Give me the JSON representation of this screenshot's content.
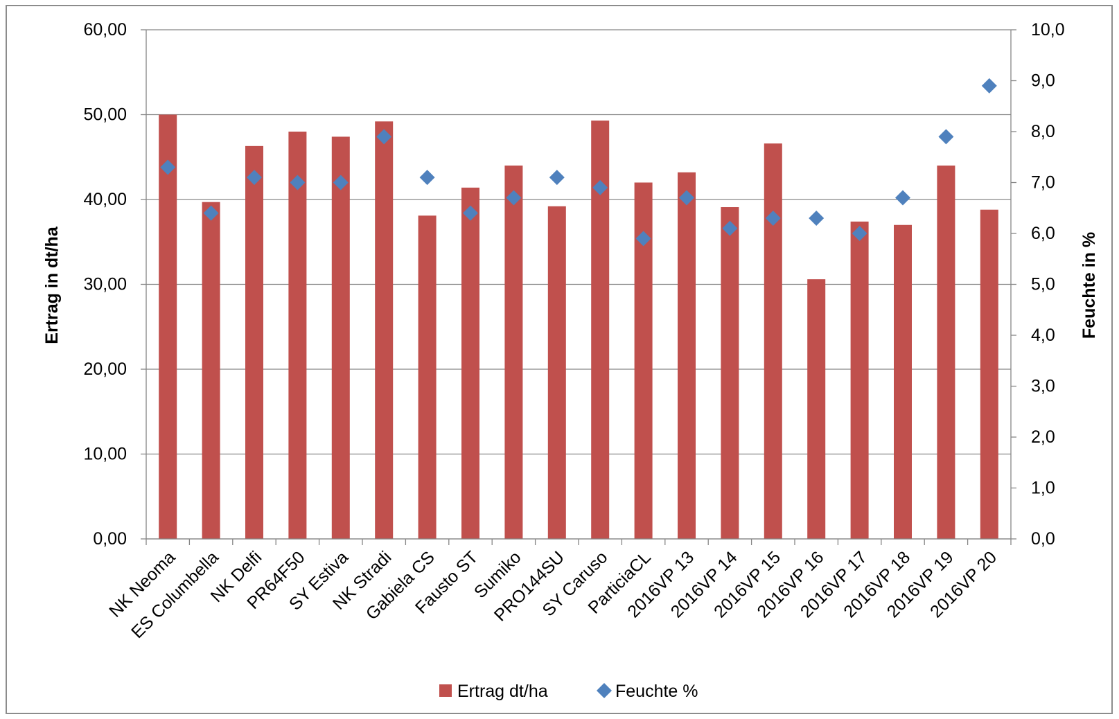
{
  "chart_data": {
    "type": "bar",
    "categories": [
      "NK Neoma",
      "ES Columbella",
      "NK Delfi",
      "PR64F50",
      "SY Estiva",
      "NK Stradi",
      "Gabiela CS",
      "Fausto ST",
      "Sumiko",
      "PRO144SU",
      "SY Caruso",
      "ParticiaCL",
      "2016VP 13",
      "2016VP 14",
      "2016VP 15",
      "2016VP 16",
      "2016VP 17",
      "2016VP 18",
      "2016VP 19",
      "2016VP 20"
    ],
    "series": [
      {
        "name": "Ertrag dt/ha",
        "type": "bar",
        "axis": "left",
        "color": "#c0504d",
        "values": [
          50.0,
          39.7,
          46.3,
          48.0,
          47.4,
          49.2,
          38.1,
          41.4,
          44.0,
          39.2,
          49.3,
          42.0,
          43.2,
          39.1,
          46.6,
          30.6,
          37.4,
          37.0,
          44.0,
          38.8
        ]
      },
      {
        "name": "Feuchte %",
        "type": "scatter",
        "marker": "diamond",
        "axis": "right",
        "color": "#4f81bd",
        "values": [
          7.3,
          6.4,
          7.1,
          7.0,
          7.0,
          7.9,
          7.1,
          6.4,
          6.7,
          7.1,
          6.9,
          5.9,
          6.7,
          6.1,
          6.3,
          6.3,
          6.0,
          6.7,
          7.9,
          8.9
        ]
      }
    ],
    "title": "",
    "ylabel": "Ertrag in dt/ha",
    "y2label": "Feuchte in %",
    "ylim": [
      0,
      60
    ],
    "y2lim": [
      0,
      10
    ],
    "yticks": [
      "0,00",
      "10,00",
      "20,00",
      "30,00",
      "40,00",
      "50,00",
      "60,00"
    ],
    "y2ticks": [
      "0,0",
      "1,0",
      "2,0",
      "3,0",
      "4,0",
      "5,0",
      "6,0",
      "7,0",
      "8,0",
      "9,0",
      "10,0"
    ],
    "grid": true,
    "legend": "bottom",
    "legend_entries": [
      "Ertrag dt/ha",
      "Feuchte %"
    ]
  }
}
